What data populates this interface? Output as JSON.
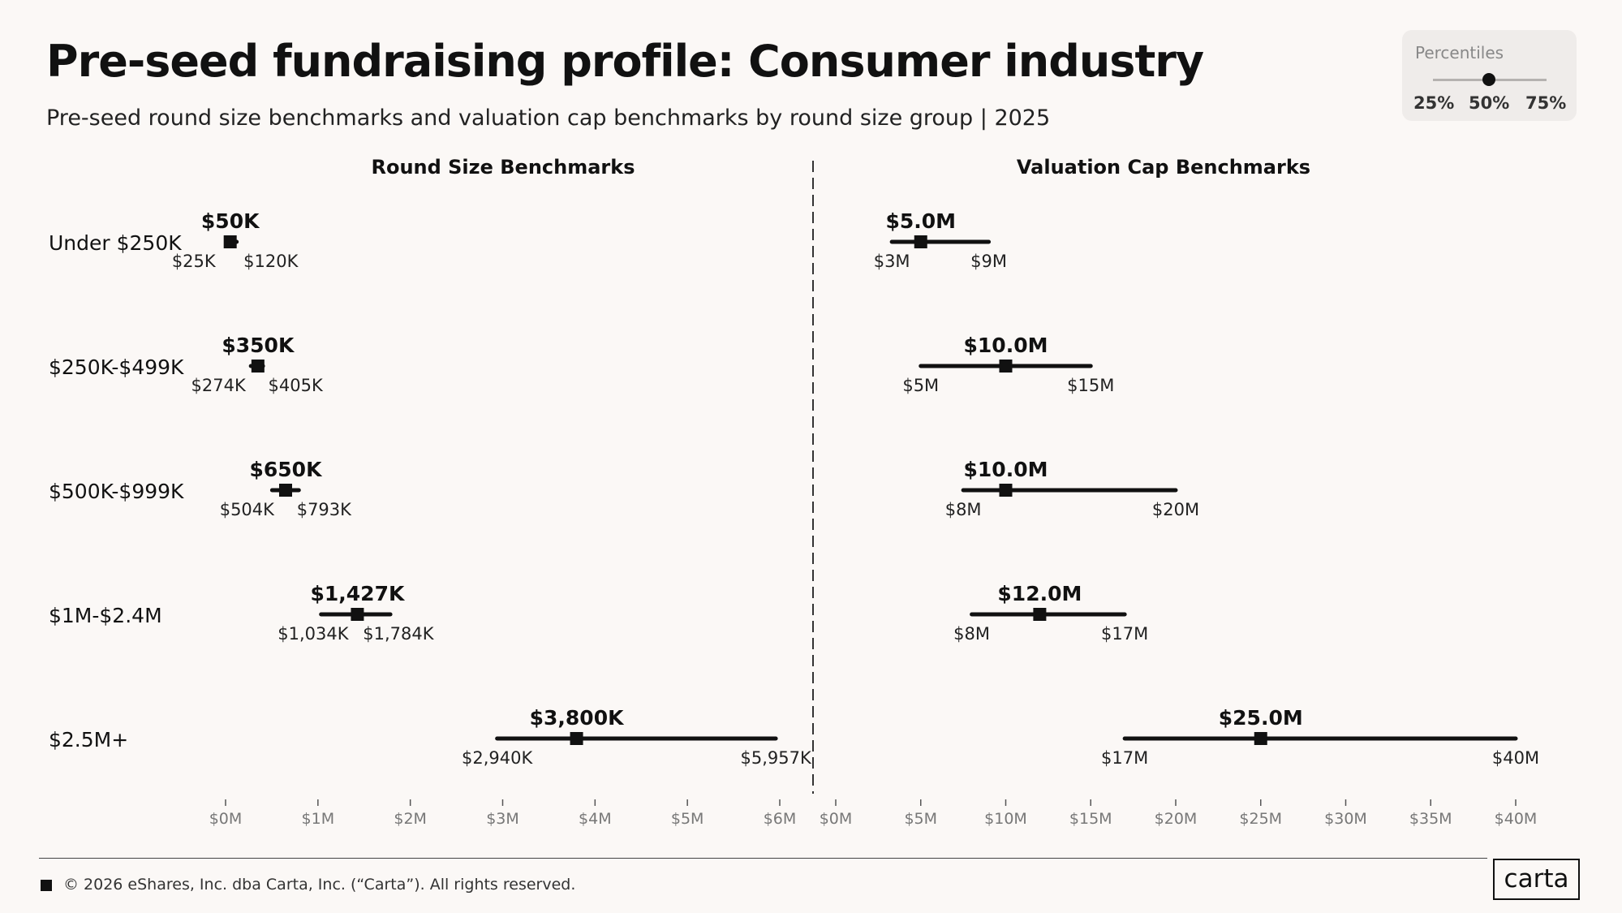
{
  "header": {
    "title": "Pre-seed fundraising profile: Consumer industry",
    "subtitle": "Pre-seed round size benchmarks and valuation cap benchmarks by round size group | 2025"
  },
  "legend": {
    "title": "Percentiles",
    "labels": [
      "25%",
      "50%",
      "75%"
    ]
  },
  "chart_data": {
    "type": "dot-range",
    "categories": [
      "Under $250K",
      "$250K-$499K",
      "$500K-$999K",
      "$1M-$2.4M",
      "$2.5M+"
    ],
    "panels": [
      {
        "title": "Round Size Benchmarks",
        "unit": "K",
        "xlim": [
          0,
          6000
        ],
        "ticks": [
          0,
          1000,
          2000,
          3000,
          4000,
          5000,
          6000
        ],
        "tick_labels": [
          "$0M",
          "$1M",
          "$2M",
          "$3M",
          "$4M",
          "$5M",
          "$6M"
        ],
        "p25": [
          25,
          274,
          504,
          1034,
          2940
        ],
        "p50": [
          50,
          350,
          650,
          1427,
          3800
        ],
        "p75": [
          120,
          405,
          793,
          1784,
          5957
        ],
        "p25_labels": [
          "$25K",
          "$274K",
          "$504K",
          "$1,034K",
          "$2,940K"
        ],
        "p50_labels": [
          "$50K",
          "$350K",
          "$650K",
          "$1,427K",
          "$3,800K"
        ],
        "p75_labels": [
          "$120K",
          "$405K",
          "$793K",
          "$1,784K",
          "$5,957K"
        ]
      },
      {
        "title": "Valuation Cap Benchmarks",
        "unit": "M",
        "xlim": [
          0,
          40
        ],
        "ticks": [
          0,
          5,
          10,
          15,
          20,
          25,
          30,
          35,
          40
        ],
        "tick_labels": [
          "$0M",
          "$5M",
          "$10M",
          "$15M",
          "$20M",
          "$25M",
          "$30M",
          "$35M",
          "$40M"
        ],
        "p25": [
          3.3,
          5,
          7.5,
          8,
          17
        ],
        "p50": [
          5,
          10,
          10,
          12,
          25
        ],
        "p75": [
          9,
          15,
          20,
          17,
          40
        ],
        "p25_labels": [
          "$3M",
          "$5M",
          "$8M",
          "$8M",
          "$17M"
        ],
        "p50_labels": [
          "$5.0M",
          "$10.0M",
          "$10.0M",
          "$12.0M",
          "$25.0M"
        ],
        "p75_labels": [
          "$9M",
          "$15M",
          "$20M",
          "$17M",
          "$40M"
        ]
      }
    ]
  },
  "footer": {
    "copyright": "© 2026 eShares, Inc. dba Carta, Inc. (“Carta”). All rights reserved.",
    "logo": "carta"
  }
}
